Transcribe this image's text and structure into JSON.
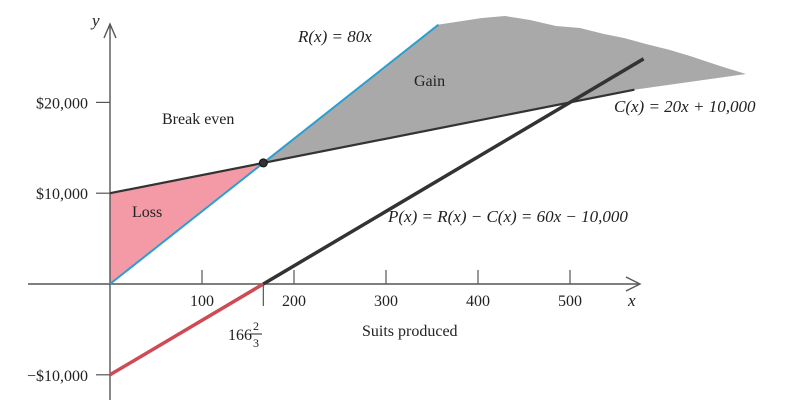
{
  "chart_data": {
    "type": "line",
    "xlim": [
      0,
      570
    ],
    "ylim": [
      -10000,
      27000
    ],
    "x_axis": {
      "label": "x",
      "caption": "Suits produced",
      "ticks": [
        100,
        200,
        300,
        400,
        500
      ],
      "tick_labels": [
        "100",
        "200",
        "300",
        "400",
        "500"
      ]
    },
    "y_axis": {
      "label": "y",
      "ticks": [
        20000,
        10000,
        -10000
      ],
      "tick_labels": [
        "$20,000",
        "$10,000",
        "−$10,000"
      ]
    },
    "series": [
      {
        "name": "R(x) = 80x",
        "slope": 80,
        "intercept": 0,
        "x_range": [
          0,
          357
        ],
        "color": "#2a9fd0"
      },
      {
        "name": "C(x) = 20x + 10,000",
        "slope": 20,
        "intercept": 10000,
        "x_range": [
          0,
          570
        ],
        "color": "#333333"
      },
      {
        "name": "P(x) = R(x) − C(x) = 60x − 10,000",
        "slope": 60,
        "intercept": -10000,
        "x_range": [
          0,
          580
        ],
        "color": "#333333",
        "negative_color": "#d04a55"
      }
    ],
    "regions": [
      {
        "label": "Loss",
        "color": "#f39aa6"
      },
      {
        "label": "Gain",
        "color": "#a9a9a9"
      }
    ],
    "annotations": {
      "break_even": {
        "label": "Break even",
        "x": 166.67,
        "y": 13333
      },
      "break_even_x_label": {
        "whole": "166",
        "num": "2",
        "den": "3"
      }
    }
  }
}
